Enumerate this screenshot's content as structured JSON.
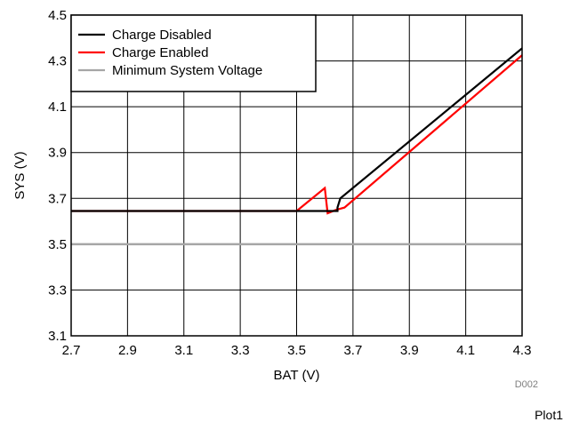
{
  "chart_data": {
    "type": "line",
    "title": "",
    "xlabel": "BAT (V)",
    "ylabel": "SYS (V)",
    "xlim": [
      2.7,
      4.3
    ],
    "ylim": [
      3.1,
      4.5
    ],
    "x_ticks": [
      "2.7",
      "2.9",
      "3.1",
      "3.3",
      "3.5",
      "3.7",
      "3.9",
      "4.1",
      "4.3"
    ],
    "y_ticks": [
      "3.1",
      "3.3",
      "3.5",
      "3.7",
      "3.9",
      "4.1",
      "4.3",
      "4.5"
    ],
    "grid": true,
    "legend_position": "top-left",
    "series": [
      {
        "name": "Charge Disabled",
        "color": "#000000",
        "x": [
          2.7,
          3.5,
          3.645,
          3.645,
          3.655,
          4.3
        ],
        "y": [
          3.645,
          3.645,
          3.645,
          3.66,
          3.7,
          4.355
        ]
      },
      {
        "name": "Charge Enabled",
        "color": "#ff0000",
        "x": [
          2.7,
          3.5,
          3.6,
          3.61,
          3.64,
          3.67,
          4.3
        ],
        "y": [
          3.645,
          3.645,
          3.745,
          3.635,
          3.65,
          3.66,
          4.325
        ]
      },
      {
        "name": "Minimum System Voltage",
        "color": "#a6a6a6",
        "x": [
          2.7,
          4.3
        ],
        "y": [
          3.5,
          3.5
        ]
      }
    ]
  },
  "figure_code": "D002",
  "footer_label": "Plot1"
}
